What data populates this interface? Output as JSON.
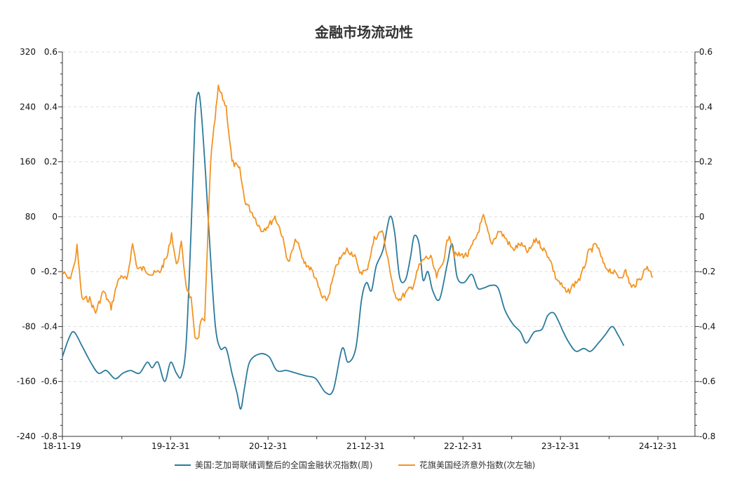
{
  "chart_data": {
    "type": "line",
    "title": "金融市场流动性",
    "x_tick_labels": [
      "18-11-19",
      "19-12-31",
      "20-12-31",
      "21-12-31",
      "22-12-31",
      "23-12-31",
      "24-12-31"
    ],
    "left_outer_axis": {
      "ticks": [
        "320",
        "240",
        "160",
        "80",
        "0",
        "-80",
        "-160",
        "-240"
      ],
      "ylim": [
        -240,
        320
      ]
    },
    "left_inner_axis": {
      "ticks": [
        "0.6",
        "0.4",
        "0.2",
        "0",
        "-0.2",
        "-0.4",
        "-0.6",
        "-0.8"
      ],
      "ylim": [
        -0.8,
        0.6
      ]
    },
    "right_axis": {
      "ticks": [
        "0.6",
        "0.4",
        "0.2",
        "0",
        "-0.2",
        "-0.4",
        "-0.6",
        "-0.8"
      ],
      "ylim": [
        -0.8,
        0.6
      ]
    },
    "x_range": [
      2018.88,
      2025.37
    ],
    "grid": "horizontal-dashed",
    "series": [
      {
        "name": "美国:芝加哥联储调整后的全国金融状况指数(周)",
        "color": "#2b7a9b",
        "axis": "right",
        "points": [
          [
            2018.88,
            -0.51
          ],
          [
            2018.95,
            -0.44
          ],
          [
            2019.0,
            -0.42
          ],
          [
            2019.08,
            -0.47
          ],
          [
            2019.17,
            -0.53
          ],
          [
            2019.25,
            -0.57
          ],
          [
            2019.33,
            -0.56
          ],
          [
            2019.42,
            -0.59
          ],
          [
            2019.5,
            -0.57
          ],
          [
            2019.58,
            -0.56
          ],
          [
            2019.67,
            -0.57
          ],
          [
            2019.75,
            -0.53
          ],
          [
            2019.8,
            -0.55
          ],
          [
            2019.86,
            -0.53
          ],
          [
            2019.93,
            -0.6
          ],
          [
            2019.99,
            -0.53
          ],
          [
            2020.05,
            -0.57
          ],
          [
            2020.1,
            -0.58
          ],
          [
            2020.15,
            -0.46
          ],
          [
            2020.2,
            -0.05
          ],
          [
            2020.24,
            0.35
          ],
          [
            2020.27,
            0.45
          ],
          [
            2020.3,
            0.4
          ],
          [
            2020.35,
            0.15
          ],
          [
            2020.4,
            -0.15
          ],
          [
            2020.45,
            -0.4
          ],
          [
            2020.5,
            -0.48
          ],
          [
            2020.56,
            -0.48
          ],
          [
            2020.62,
            -0.57
          ],
          [
            2020.67,
            -0.64
          ],
          [
            2020.71,
            -0.7
          ],
          [
            2020.75,
            -0.62
          ],
          [
            2020.8,
            -0.53
          ],
          [
            2020.9,
            -0.5
          ],
          [
            2021.0,
            -0.51
          ],
          [
            2021.08,
            -0.56
          ],
          [
            2021.18,
            -0.56
          ],
          [
            2021.28,
            -0.57
          ],
          [
            2021.38,
            -0.58
          ],
          [
            2021.48,
            -0.59
          ],
          [
            2021.58,
            -0.64
          ],
          [
            2021.66,
            -0.63
          ],
          [
            2021.75,
            -0.48
          ],
          [
            2021.81,
            -0.53
          ],
          [
            2021.89,
            -0.48
          ],
          [
            2021.95,
            -0.3
          ],
          [
            2022.0,
            -0.24
          ],
          [
            2022.05,
            -0.27
          ],
          [
            2022.1,
            -0.18
          ],
          [
            2022.17,
            -0.12
          ],
          [
            2022.24,
            0.0
          ],
          [
            2022.29,
            -0.06
          ],
          [
            2022.34,
            -0.22
          ],
          [
            2022.4,
            -0.23
          ],
          [
            2022.45,
            -0.15
          ],
          [
            2022.49,
            -0.07
          ],
          [
            2022.54,
            -0.1
          ],
          [
            2022.58,
            -0.23
          ],
          [
            2022.63,
            -0.2
          ],
          [
            2022.68,
            -0.27
          ],
          [
            2022.75,
            -0.3
          ],
          [
            2022.83,
            -0.17
          ],
          [
            2022.88,
            -0.1
          ],
          [
            2022.93,
            -0.22
          ],
          [
            2023.0,
            -0.24
          ],
          [
            2023.08,
            -0.21
          ],
          [
            2023.14,
            -0.26
          ],
          [
            2023.2,
            -0.26
          ],
          [
            2023.28,
            -0.25
          ],
          [
            2023.35,
            -0.26
          ],
          [
            2023.42,
            -0.34
          ],
          [
            2023.5,
            -0.39
          ],
          [
            2023.58,
            -0.42
          ],
          [
            2023.64,
            -0.46
          ],
          [
            2023.72,
            -0.42
          ],
          [
            2023.8,
            -0.41
          ],
          [
            2023.86,
            -0.36
          ],
          [
            2023.92,
            -0.35
          ],
          [
            2023.97,
            -0.38
          ],
          [
            2024.02,
            -0.42
          ],
          [
            2024.08,
            -0.46
          ],
          [
            2024.15,
            -0.49
          ],
          [
            2024.23,
            -0.48
          ],
          [
            2024.3,
            -0.49
          ],
          [
            2024.38,
            -0.46
          ],
          [
            2024.45,
            -0.43
          ],
          [
            2024.52,
            -0.4
          ],
          [
            2024.58,
            -0.43
          ],
          [
            2024.64,
            -0.47
          ]
        ]
      },
      {
        "name": "花旗美国经济意外指数(次左轴)",
        "color": "#f39422",
        "axis": "left_inner",
        "points": [
          [
            2018.88,
            -0.2
          ],
          [
            2018.95,
            -0.23
          ],
          [
            2019.0,
            -0.18
          ],
          [
            2019.03,
            -0.11
          ],
          [
            2019.08,
            -0.3
          ],
          [
            2019.16,
            -0.3
          ],
          [
            2019.22,
            -0.35
          ],
          [
            2019.3,
            -0.27
          ],
          [
            2019.38,
            -0.33
          ],
          [
            2019.46,
            -0.22
          ],
          [
            2019.54,
            -0.23
          ],
          [
            2019.6,
            -0.1
          ],
          [
            2019.65,
            -0.19
          ],
          [
            2019.72,
            -0.19
          ],
          [
            2019.8,
            -0.21
          ],
          [
            2019.88,
            -0.2
          ],
          [
            2019.96,
            -0.14
          ],
          [
            2020.0,
            -0.06
          ],
          [
            2020.05,
            -0.18
          ],
          [
            2020.1,
            -0.1
          ],
          [
            2020.15,
            -0.25
          ],
          [
            2020.2,
            -0.3
          ],
          [
            2020.24,
            -0.45
          ],
          [
            2020.28,
            -0.43
          ],
          [
            2020.3,
            -0.38
          ],
          [
            2020.34,
            -0.38
          ],
          [
            2020.4,
            0.2
          ],
          [
            2020.48,
            0.47
          ],
          [
            2020.56,
            0.4
          ],
          [
            2020.62,
            0.2
          ],
          [
            2020.7,
            0.17
          ],
          [
            2020.75,
            0.06
          ],
          [
            2020.85,
            0.0
          ],
          [
            2020.92,
            -0.05
          ],
          [
            2021.0,
            -0.03
          ],
          [
            2021.06,
            0.0
          ],
          [
            2021.12,
            -0.05
          ],
          [
            2021.2,
            -0.17
          ],
          [
            2021.28,
            -0.08
          ],
          [
            2021.35,
            -0.16
          ],
          [
            2021.45,
            -0.2
          ],
          [
            2021.55,
            -0.3
          ],
          [
            2021.6,
            -0.3
          ],
          [
            2021.7,
            -0.17
          ],
          [
            2021.8,
            -0.12
          ],
          [
            2021.88,
            -0.14
          ],
          [
            2021.92,
            -0.2
          ],
          [
            2022.0,
            -0.2
          ],
          [
            2022.08,
            -0.08
          ],
          [
            2022.16,
            -0.05
          ],
          [
            2022.22,
            -0.15
          ],
          [
            2022.28,
            -0.28
          ],
          [
            2022.34,
            -0.3
          ],
          [
            2022.4,
            -0.28
          ],
          [
            2022.48,
            -0.25
          ],
          [
            2022.54,
            -0.18
          ],
          [
            2022.6,
            -0.15
          ],
          [
            2022.66,
            -0.15
          ],
          [
            2022.72,
            -0.22
          ],
          [
            2022.78,
            -0.17
          ],
          [
            2022.85,
            -0.06
          ],
          [
            2022.9,
            -0.14
          ],
          [
            2022.96,
            -0.14
          ],
          [
            2023.04,
            -0.14
          ],
          [
            2023.12,
            -0.08
          ],
          [
            2023.2,
            0.0
          ],
          [
            2023.28,
            -0.1
          ],
          [
            2023.36,
            -0.05
          ],
          [
            2023.43,
            -0.08
          ],
          [
            2023.5,
            -0.12
          ],
          [
            2023.58,
            -0.1
          ],
          [
            2023.66,
            -0.13
          ],
          [
            2023.74,
            -0.08
          ],
          [
            2023.82,
            -0.12
          ],
          [
            2023.88,
            -0.15
          ],
          [
            2023.94,
            -0.22
          ],
          [
            2024.0,
            -0.25
          ],
          [
            2024.06,
            -0.28
          ],
          [
            2024.12,
            -0.25
          ],
          [
            2024.2,
            -0.22
          ],
          [
            2024.28,
            -0.13
          ],
          [
            2024.36,
            -0.1
          ],
          [
            2024.44,
            -0.18
          ],
          [
            2024.52,
            -0.2
          ],
          [
            2024.6,
            -0.22
          ],
          [
            2024.66,
            -0.2
          ],
          [
            2024.72,
            -0.26
          ],
          [
            2024.8,
            -0.23
          ],
          [
            2024.88,
            -0.18
          ],
          [
            2024.94,
            -0.22
          ]
        ]
      }
    ]
  }
}
